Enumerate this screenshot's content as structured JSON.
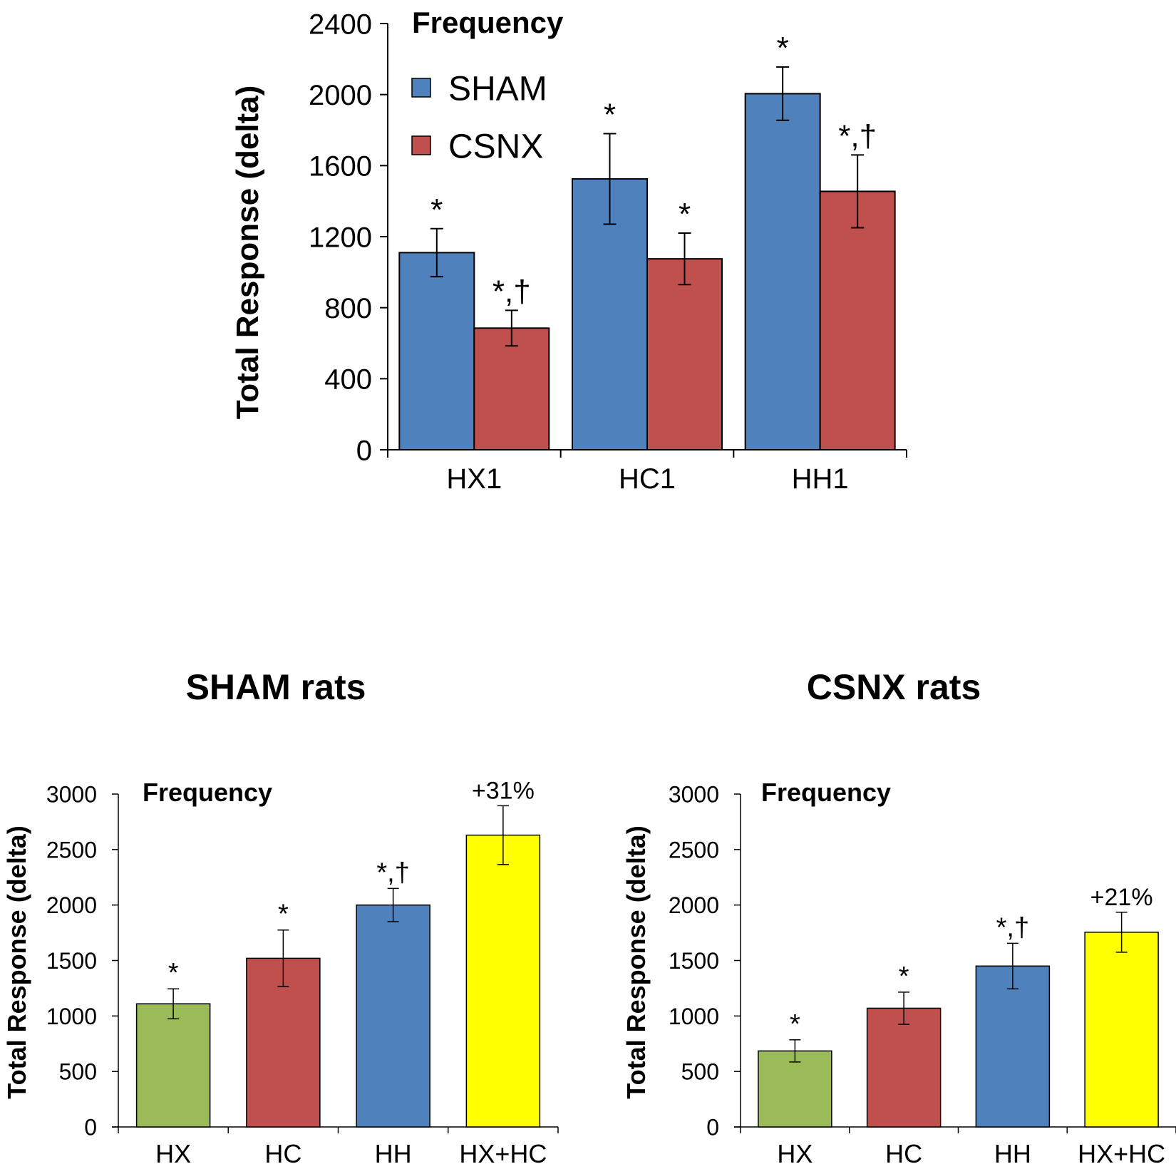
{
  "chart_data": [
    {
      "type": "bar",
      "title": "Frequency",
      "ylabel": "Total Response (delta)",
      "xlabel": "",
      "ylim": [
        0,
        2400
      ],
      "yticks": [
        0,
        400,
        800,
        1200,
        1600,
        2000,
        2400
      ],
      "ytick_labels": [
        "0",
        "400",
        "800",
        "1200",
        "1600",
        "2000",
        "2400"
      ],
      "categories": [
        "HX1",
        "HC1",
        "HH1"
      ],
      "legend_position": "top-left",
      "series": [
        {
          "name": "SHAM",
          "color": "#4f81bd",
          "values": [
            1110,
            1525,
            2005
          ],
          "errors": [
            135,
            255,
            150
          ],
          "annotations": [
            "*",
            "*",
            "*"
          ]
        },
        {
          "name": "CSNX",
          "color": "#c0504d",
          "values": [
            685,
            1075,
            1455
          ],
          "errors": [
            100,
            145,
            205
          ],
          "annotations": [
            "*,†",
            "*",
            "*,†"
          ]
        }
      ]
    },
    {
      "type": "bar",
      "panel_title": "SHAM rats",
      "title": "Frequency",
      "ylabel": "Total Response (delta)",
      "xlabel": "",
      "ylim": [
        0,
        3000
      ],
      "yticks": [
        0,
        500,
        1000,
        1500,
        2000,
        2500,
        3000
      ],
      "ytick_labels": [
        "0",
        "500",
        "1000",
        "1500",
        "2000",
        "2500",
        "3000"
      ],
      "categories": [
        "HX",
        "HC",
        "HH",
        "HX+HC"
      ],
      "values": [
        1110,
        1520,
        2000,
        2630
      ],
      "errors": [
        135,
        255,
        150,
        265
      ],
      "colors": [
        "#9bbb59",
        "#c0504d",
        "#4f81bd",
        "#ffff00"
      ],
      "annotations": [
        "*",
        "*",
        "*,†",
        "+31%"
      ]
    },
    {
      "type": "bar",
      "panel_title": "CSNX rats",
      "title": "Frequency",
      "ylabel": "Total Response (delta)",
      "xlabel": "",
      "ylim": [
        0,
        3000
      ],
      "yticks": [
        0,
        500,
        1000,
        1500,
        2000,
        2500,
        3000
      ],
      "ytick_labels": [
        "0",
        "500",
        "1000",
        "1500",
        "2000",
        "2500",
        "3000"
      ],
      "categories": [
        "HX",
        "HC",
        "HH",
        "HX+HC"
      ],
      "values": [
        685,
        1070,
        1450,
        1755
      ],
      "errors": [
        100,
        145,
        205,
        180
      ],
      "colors": [
        "#9bbb59",
        "#c0504d",
        "#4f81bd",
        "#ffff00"
      ],
      "annotations": [
        "*",
        "*",
        "*,†",
        "+21%"
      ]
    }
  ]
}
